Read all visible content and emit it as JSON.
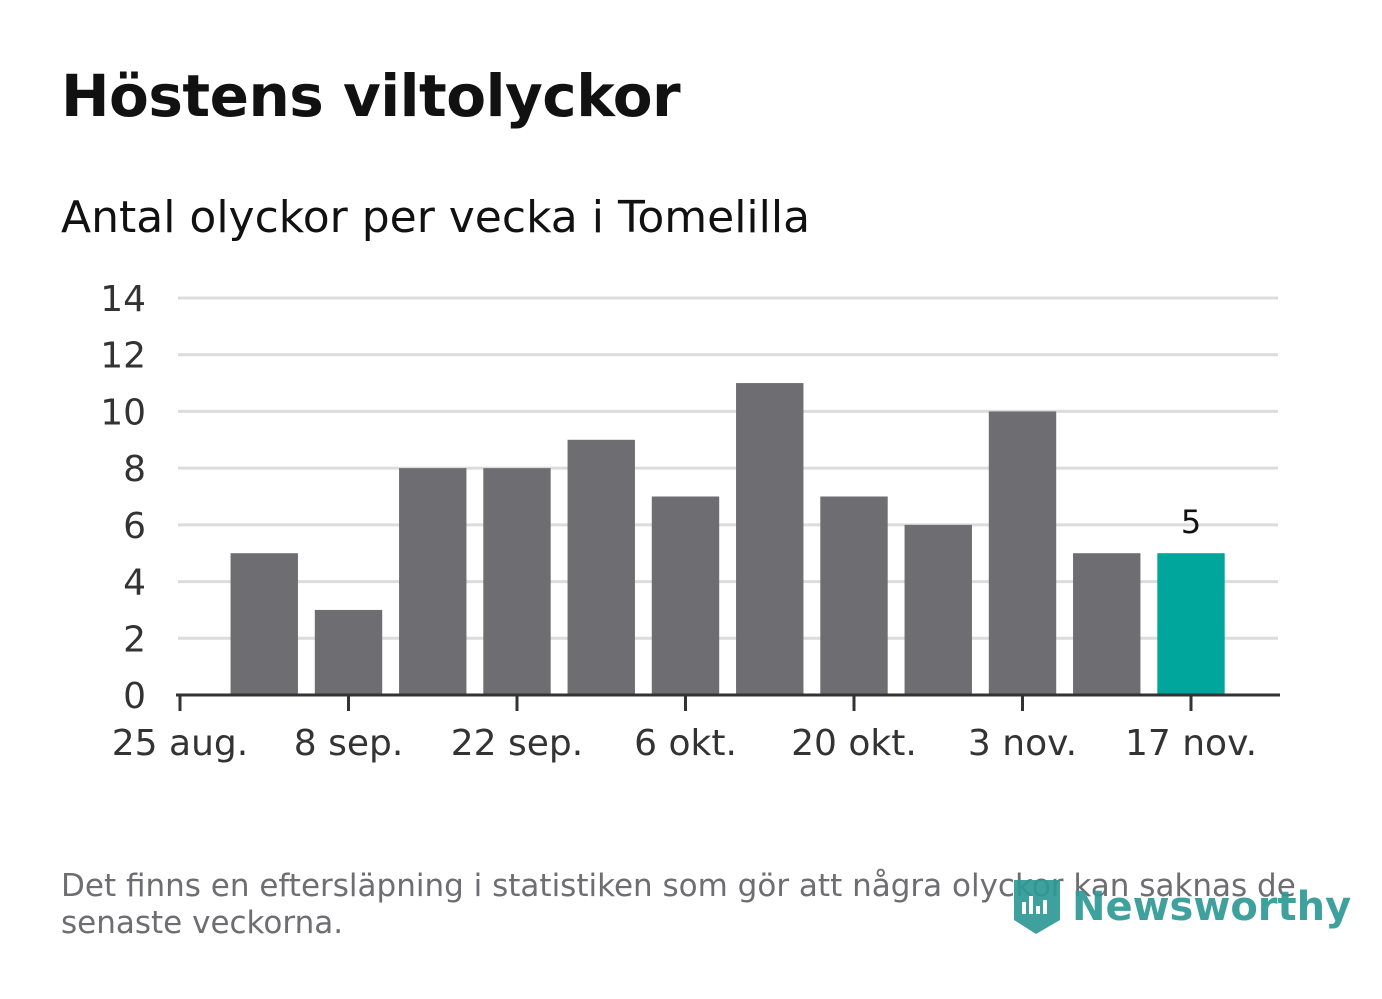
{
  "header": {
    "title": "Höstens viltolyckor",
    "subtitle": "Antal olyckor per vecka i Tomelilla"
  },
  "footer": {
    "note": "Det finns en eftersläpning i statistiken som gör att några olyckor kan saknas de senaste veckorna.",
    "logo_text": "Newsworthy"
  },
  "colors": {
    "bar": "#6e6d72",
    "highlight": "#00a59b",
    "grid": "#dcdcdc",
    "axis": "#333333",
    "logo": "#2f9a96"
  },
  "chart_data": {
    "type": "bar",
    "title": "Antal olyckor per vecka i Tomelilla",
    "xlabel": "",
    "ylabel": "",
    "ylim": [
      0,
      14
    ],
    "yticks": [
      0,
      2,
      4,
      6,
      8,
      10,
      12,
      14
    ],
    "grid": true,
    "xticks": [
      "25 aug.",
      "8 sep.",
      "22 sep.",
      "6 okt.",
      "20 okt.",
      "3 nov.",
      "17 nov."
    ],
    "values": [
      5,
      3,
      8,
      8,
      9,
      7,
      11,
      7,
      6,
      10,
      5,
      5
    ],
    "highlight_index": 11,
    "highlight_label": "5"
  }
}
